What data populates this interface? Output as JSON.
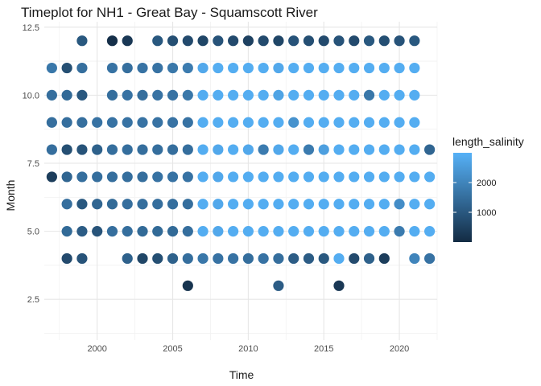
{
  "chart_data": {
    "type": "scatter",
    "title": "Timeplot for NH1 - Great Bay - Squamscott River",
    "xlabel": "Time",
    "ylabel": "Month",
    "xlim": [
      1996.5,
      2022.5
    ],
    "ylim": [
      1.0,
      12.7
    ],
    "x_ticks": [
      2000,
      2005,
      2010,
      2015,
      2020
    ],
    "x_tick_labels": [
      "2000",
      "2005",
      "2010",
      "2015",
      "2020"
    ],
    "y_ticks": [
      2.5,
      5.0,
      7.5,
      10.0,
      12.5
    ],
    "y_tick_labels": [
      "2.5",
      "5.0",
      "7.5",
      "10.0",
      "12.5"
    ],
    "grid": true,
    "legend": {
      "title": "length_salinity",
      "placement": "right",
      "min": 0,
      "max": 3000,
      "ticks": [
        1000,
        2000
      ],
      "tick_labels": [
        "1000",
        "2000"
      ],
      "colors": [
        "#132b43",
        "#56b1f7"
      ]
    },
    "rows": [
      {
        "month": 12,
        "points": [
          [
            1999,
            1000
          ],
          [
            2001,
            100
          ],
          [
            2002,
            300
          ],
          [
            2004,
            1000
          ],
          [
            2005,
            800
          ],
          [
            2006,
            700
          ],
          [
            2007,
            600
          ],
          [
            2008,
            900
          ],
          [
            2009,
            700
          ],
          [
            2010,
            500
          ],
          [
            2011,
            700
          ],
          [
            2012,
            600
          ],
          [
            2013,
            900
          ],
          [
            2014,
            800
          ],
          [
            2015,
            700
          ],
          [
            2016,
            900
          ],
          [
            2017,
            700
          ],
          [
            2018,
            1000
          ],
          [
            2019,
            800
          ],
          [
            2020,
            900
          ],
          [
            2021,
            1000
          ]
        ]
      },
      {
        "month": 11,
        "points": [
          [
            1997,
            1700
          ],
          [
            1998,
            800
          ],
          [
            1999,
            1500
          ],
          [
            2001,
            1600
          ],
          [
            2002,
            1500
          ],
          [
            2003,
            1600
          ],
          [
            2004,
            1600
          ],
          [
            2005,
            1700
          ],
          [
            2006,
            1800
          ],
          [
            2007,
            2800
          ],
          [
            2008,
            2900
          ],
          [
            2009,
            2900
          ],
          [
            2010,
            2900
          ],
          [
            2011,
            2900
          ],
          [
            2012,
            2800
          ],
          [
            2013,
            2900
          ],
          [
            2014,
            2900
          ],
          [
            2015,
            2900
          ],
          [
            2016,
            2900
          ],
          [
            2017,
            2900
          ],
          [
            2018,
            2900
          ],
          [
            2019,
            2900
          ],
          [
            2020,
            2900
          ],
          [
            2021,
            2900
          ]
        ]
      },
      {
        "month": 10,
        "points": [
          [
            1997,
            1500
          ],
          [
            1998,
            1400
          ],
          [
            1999,
            1000
          ],
          [
            2001,
            1500
          ],
          [
            2002,
            1600
          ],
          [
            2003,
            1500
          ],
          [
            2004,
            1600
          ],
          [
            2005,
            1600
          ],
          [
            2006,
            1700
          ],
          [
            2007,
            2900
          ],
          [
            2008,
            2900
          ],
          [
            2009,
            2900
          ],
          [
            2010,
            2900
          ],
          [
            2011,
            2900
          ],
          [
            2012,
            2700
          ],
          [
            2013,
            2900
          ],
          [
            2014,
            2900
          ],
          [
            2015,
            2900
          ],
          [
            2016,
            2900
          ],
          [
            2017,
            2900
          ],
          [
            2018,
            1700
          ],
          [
            2019,
            2900
          ],
          [
            2020,
            2900
          ],
          [
            2021,
            2900
          ]
        ]
      },
      {
        "month": 9,
        "points": [
          [
            1997,
            1500
          ],
          [
            1998,
            1500
          ],
          [
            1999,
            1500
          ],
          [
            2000,
            1600
          ],
          [
            2001,
            1600
          ],
          [
            2002,
            1600
          ],
          [
            2003,
            1600
          ],
          [
            2004,
            1600
          ],
          [
            2005,
            1600
          ],
          [
            2006,
            1600
          ],
          [
            2007,
            2900
          ],
          [
            2008,
            2900
          ],
          [
            2009,
            2900
          ],
          [
            2010,
            2900
          ],
          [
            2011,
            2900
          ],
          [
            2012,
            2900
          ],
          [
            2013,
            2300
          ],
          [
            2014,
            2900
          ],
          [
            2015,
            2900
          ],
          [
            2016,
            2900
          ],
          [
            2017,
            2900
          ],
          [
            2018,
            2900
          ],
          [
            2019,
            2900
          ],
          [
            2020,
            2900
          ],
          [
            2021,
            2900
          ]
        ]
      },
      {
        "month": 8,
        "points": [
          [
            1997,
            1500
          ],
          [
            1998,
            800
          ],
          [
            1999,
            900
          ],
          [
            2000,
            1200
          ],
          [
            2001,
            1500
          ],
          [
            2002,
            1500
          ],
          [
            2003,
            1500
          ],
          [
            2004,
            1500
          ],
          [
            2005,
            1500
          ],
          [
            2006,
            1500
          ],
          [
            2007,
            2900
          ],
          [
            2008,
            2800
          ],
          [
            2009,
            2900
          ],
          [
            2010,
            2800
          ],
          [
            2011,
            1800
          ],
          [
            2012,
            2800
          ],
          [
            2013,
            2900
          ],
          [
            2014,
            1800
          ],
          [
            2015,
            2600
          ],
          [
            2016,
            2900
          ],
          [
            2017,
            2900
          ],
          [
            2018,
            2900
          ],
          [
            2019,
            2900
          ],
          [
            2020,
            2900
          ],
          [
            2021,
            2900
          ],
          [
            2022,
            1300
          ]
        ]
      },
      {
        "month": 7,
        "points": [
          [
            1997,
            400
          ],
          [
            1998,
            1300
          ],
          [
            1999,
            1500
          ],
          [
            2000,
            1500
          ],
          [
            2001,
            1500
          ],
          [
            2002,
            1500
          ],
          [
            2003,
            1500
          ],
          [
            2004,
            1600
          ],
          [
            2005,
            1600
          ],
          [
            2006,
            1600
          ],
          [
            2007,
            2900
          ],
          [
            2008,
            2800
          ],
          [
            2009,
            2900
          ],
          [
            2010,
            2900
          ],
          [
            2011,
            2900
          ],
          [
            2012,
            2900
          ],
          [
            2013,
            2900
          ],
          [
            2014,
            2900
          ],
          [
            2015,
            2900
          ],
          [
            2016,
            2900
          ],
          [
            2017,
            2900
          ],
          [
            2018,
            2900
          ],
          [
            2019,
            2900
          ],
          [
            2020,
            2900
          ],
          [
            2021,
            2900
          ],
          [
            2022,
            2900
          ]
        ]
      },
      {
        "month": 6,
        "points": [
          [
            1998,
            1500
          ],
          [
            1999,
            1000
          ],
          [
            2000,
            1300
          ],
          [
            2001,
            1400
          ],
          [
            2002,
            1500
          ],
          [
            2003,
            1500
          ],
          [
            2004,
            1500
          ],
          [
            2005,
            1500
          ],
          [
            2006,
            1500
          ],
          [
            2007,
            2900
          ],
          [
            2008,
            2800
          ],
          [
            2009,
            2900
          ],
          [
            2010,
            2900
          ],
          [
            2011,
            2900
          ],
          [
            2012,
            2900
          ],
          [
            2013,
            2900
          ],
          [
            2014,
            2900
          ],
          [
            2015,
            2900
          ],
          [
            2016,
            2900
          ],
          [
            2017,
            2900
          ],
          [
            2018,
            2900
          ],
          [
            2019,
            2900
          ],
          [
            2020,
            2200
          ],
          [
            2021,
            2900
          ],
          [
            2022,
            2900
          ]
        ]
      },
      {
        "month": 5,
        "points": [
          [
            1998,
            1400
          ],
          [
            1999,
            1100
          ],
          [
            2000,
            900
          ],
          [
            2001,
            1500
          ],
          [
            2002,
            1500
          ],
          [
            2003,
            1400
          ],
          [
            2004,
            1400
          ],
          [
            2005,
            1400
          ],
          [
            2006,
            1500
          ],
          [
            2007,
            2900
          ],
          [
            2008,
            2800
          ],
          [
            2009,
            2900
          ],
          [
            2010,
            2900
          ],
          [
            2011,
            2900
          ],
          [
            2012,
            2900
          ],
          [
            2013,
            2900
          ],
          [
            2014,
            2900
          ],
          [
            2015,
            2900
          ],
          [
            2016,
            2900
          ],
          [
            2017,
            2900
          ],
          [
            2018,
            2900
          ],
          [
            2019,
            2900
          ],
          [
            2020,
            1800
          ],
          [
            2021,
            2900
          ],
          [
            2022,
            2900
          ]
        ]
      },
      {
        "month": 4,
        "points": [
          [
            1998,
            700
          ],
          [
            1999,
            900
          ],
          [
            2002,
            1200
          ],
          [
            2003,
            600
          ],
          [
            2004,
            800
          ],
          [
            2005,
            1200
          ],
          [
            2006,
            1500
          ],
          [
            2007,
            1700
          ],
          [
            2008,
            1600
          ],
          [
            2009,
            1600
          ],
          [
            2010,
            1500
          ],
          [
            2011,
            1600
          ],
          [
            2012,
            1500
          ],
          [
            2013,
            1100
          ],
          [
            2014,
            1100
          ],
          [
            2015,
            1000
          ],
          [
            2016,
            2900
          ],
          [
            2017,
            700
          ],
          [
            2018,
            1200
          ],
          [
            2019,
            400
          ],
          [
            2021,
            2000
          ],
          [
            2022,
            1600
          ]
        ]
      },
      {
        "month": 3,
        "points": [
          [
            2006,
            200
          ],
          [
            2012,
            1100
          ],
          [
            2016,
            300
          ]
        ]
      }
    ]
  }
}
